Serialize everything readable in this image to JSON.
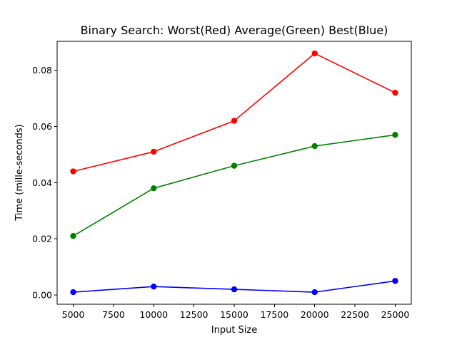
{
  "chart_data": {
    "type": "line",
    "title": "Binary Search: Worst(Red) Average(Green) Best(Blue)",
    "xlabel": "Input Size",
    "ylabel": "Time (mille-seconds)",
    "x": [
      5000,
      10000,
      15000,
      20000,
      25000
    ],
    "xlim": [
      4000,
      26000
    ],
    "ylim": [
      -0.0033,
      0.0903
    ],
    "xticks": [
      5000,
      7500,
      10000,
      12500,
      15000,
      17500,
      20000,
      22500,
      25000
    ],
    "yticks": [
      0.0,
      0.02,
      0.04,
      0.06,
      0.08
    ],
    "xtick_labels": [
      "5000",
      "7500",
      "10000",
      "12500",
      "15000",
      "17500",
      "20000",
      "22500",
      "25000"
    ],
    "ytick_labels": [
      "0.00",
      "0.02",
      "0.04",
      "0.06",
      "0.08"
    ],
    "grid": false,
    "series": [
      {
        "color": "#ff0000",
        "values": [
          0.044,
          0.051,
          0.062,
          0.086,
          0.072
        ]
      },
      {
        "color": "#008000",
        "values": [
          0.021,
          0.038,
          0.046,
          0.053,
          0.057
        ]
      },
      {
        "color": "#0000ff",
        "values": [
          0.001,
          0.003,
          0.002,
          0.001,
          0.005
        ]
      }
    ]
  }
}
